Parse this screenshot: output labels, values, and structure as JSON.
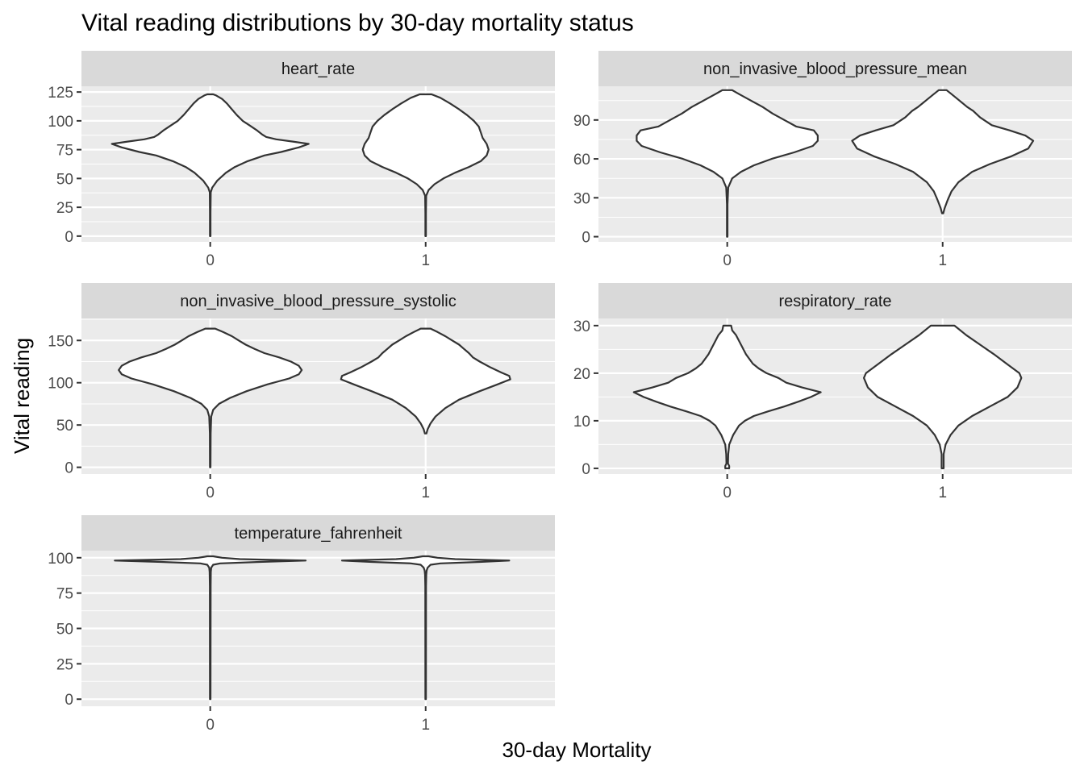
{
  "chart_data": {
    "type": "violin",
    "title": "Vital reading distributions by 30-day mortality status",
    "xlabel": "30-day Mortality",
    "ylabel": "Vital reading",
    "categories": [
      "0",
      "1"
    ],
    "facets": [
      {
        "name": "heart_rate",
        "ylim": [
          -5,
          130
        ],
        "ticks": [
          0,
          25,
          50,
          75,
          100,
          125
        ],
        "tick_labels": [
          "0",
          "25",
          "50",
          "75",
          "100",
          "125"
        ],
        "violins": [
          {
            "category": "0",
            "profile": [
              [
                0,
                0.003
              ],
              [
                20,
                0.003
              ],
              [
                38,
                0.005
              ],
              [
                42,
                0.02
              ],
              [
                48,
                0.07
              ],
              [
                55,
                0.16
              ],
              [
                60,
                0.25
              ],
              [
                65,
                0.38
              ],
              [
                70,
                0.55
              ],
              [
                73,
                0.72
              ],
              [
                77,
                0.9
              ],
              [
                80,
                1.0
              ],
              [
                82,
                0.84
              ],
              [
                84,
                0.67
              ],
              [
                86,
                0.57
              ],
              [
                88,
                0.53
              ],
              [
                92,
                0.47
              ],
              [
                96,
                0.4
              ],
              [
                100,
                0.33
              ],
              [
                105,
                0.27
              ],
              [
                110,
                0.22
              ],
              [
                115,
                0.17
              ],
              [
                119,
                0.12
              ],
              [
                122,
                0.06
              ],
              [
                123,
                0.03
              ]
            ]
          },
          {
            "category": "1",
            "profile": [
              [
                0,
                0.003
              ],
              [
                20,
                0.003
              ],
              [
                35,
                0.005
              ],
              [
                40,
                0.03
              ],
              [
                45,
                0.09
              ],
              [
                50,
                0.18
              ],
              [
                55,
                0.3
              ],
              [
                60,
                0.44
              ],
              [
                65,
                0.56
              ],
              [
                70,
                0.62
              ],
              [
                75,
                0.64
              ],
              [
                80,
                0.62
              ],
              [
                85,
                0.58
              ],
              [
                90,
                0.56
              ],
              [
                95,
                0.54
              ],
              [
                100,
                0.49
              ],
              [
                105,
                0.42
              ],
              [
                110,
                0.34
              ],
              [
                115,
                0.25
              ],
              [
                120,
                0.15
              ],
              [
                123,
                0.06
              ]
            ]
          }
        ]
      },
      {
        "name": "non_invasive_blood_pressure_mean",
        "ylim": [
          -4,
          116
        ],
        "ticks": [
          0,
          30,
          60,
          90
        ],
        "tick_labels": [
          "0",
          "30",
          "60",
          "90"
        ],
        "violins": [
          {
            "category": "0",
            "profile": [
              [
                0,
                0.003
              ],
              [
                25,
                0.003
              ],
              [
                38,
                0.01
              ],
              [
                45,
                0.05
              ],
              [
                50,
                0.14
              ],
              [
                55,
                0.27
              ],
              [
                60,
                0.45
              ],
              [
                65,
                0.68
              ],
              [
                70,
                0.87
              ],
              [
                74,
                0.92
              ],
              [
                78,
                0.92
              ],
              [
                82,
                0.88
              ],
              [
                85,
                0.7
              ],
              [
                90,
                0.58
              ],
              [
                95,
                0.46
              ],
              [
                100,
                0.36
              ],
              [
                105,
                0.24
              ],
              [
                110,
                0.12
              ],
              [
                113,
                0.05
              ]
            ]
          },
          {
            "category": "1",
            "profile": [
              [
                18,
                0.006
              ],
              [
                22,
                0.02
              ],
              [
                28,
                0.05
              ],
              [
                35,
                0.09
              ],
              [
                42,
                0.16
              ],
              [
                50,
                0.3
              ],
              [
                56,
                0.48
              ],
              [
                62,
                0.7
              ],
              [
                68,
                0.87
              ],
              [
                74,
                0.92
              ],
              [
                78,
                0.84
              ],
              [
                82,
                0.68
              ],
              [
                86,
                0.5
              ],
              [
                92,
                0.38
              ],
              [
                97,
                0.31
              ],
              [
                100,
                0.25
              ],
              [
                105,
                0.17
              ],
              [
                110,
                0.09
              ],
              [
                113,
                0.04
              ]
            ]
          }
        ]
      },
      {
        "name": "non_invasive_blood_pressure_systolic",
        "ylim": [
          -8,
          176
        ],
        "ticks": [
          0,
          50,
          100,
          150
        ],
        "tick_labels": [
          "0",
          "50",
          "100",
          "150"
        ],
        "violins": [
          {
            "category": "0",
            "profile": [
              [
                0,
                0.003
              ],
              [
                40,
                0.004
              ],
              [
                60,
                0.01
              ],
              [
                68,
                0.03
              ],
              [
                75,
                0.09
              ],
              [
                82,
                0.2
              ],
              [
                90,
                0.37
              ],
              [
                98,
                0.58
              ],
              [
                105,
                0.8
              ],
              [
                110,
                0.9
              ],
              [
                115,
                0.93
              ],
              [
                120,
                0.9
              ],
              [
                125,
                0.82
              ],
              [
                130,
                0.7
              ],
              [
                135,
                0.55
              ],
              [
                140,
                0.45
              ],
              [
                145,
                0.36
              ],
              [
                150,
                0.29
              ],
              [
                155,
                0.22
              ],
              [
                160,
                0.13
              ],
              [
                164,
                0.05
              ]
            ]
          },
          {
            "category": "1",
            "profile": [
              [
                40,
                0.008
              ],
              [
                45,
                0.02
              ],
              [
                52,
                0.05
              ],
              [
                60,
                0.1
              ],
              [
                70,
                0.2
              ],
              [
                80,
                0.34
              ],
              [
                90,
                0.55
              ],
              [
                98,
                0.73
              ],
              [
                104,
                0.86
              ],
              [
                108,
                0.85
              ],
              [
                112,
                0.77
              ],
              [
                118,
                0.66
              ],
              [
                125,
                0.55
              ],
              [
                130,
                0.48
              ],
              [
                135,
                0.44
              ],
              [
                140,
                0.39
              ],
              [
                145,
                0.34
              ],
              [
                150,
                0.27
              ],
              [
                155,
                0.2
              ],
              [
                160,
                0.12
              ],
              [
                164,
                0.05
              ]
            ]
          }
        ]
      },
      {
        "name": "respiratory_rate",
        "ylim": [
          -1.2,
          31.5
        ],
        "ticks": [
          0,
          10,
          20,
          30
        ],
        "tick_labels": [
          "0",
          "10",
          "20",
          "30"
        ],
        "violins": [
          {
            "category": "0",
            "profile": [
              [
                0,
                0.02
              ],
              [
                0.5,
                0.02
              ],
              [
                1,
                0.008
              ],
              [
                3,
                0.01
              ],
              [
                5,
                0.02
              ],
              [
                7,
                0.06
              ],
              [
                9,
                0.12
              ],
              [
                10,
                0.18
              ],
              [
                11,
                0.27
              ],
              [
                12,
                0.42
              ],
              [
                13,
                0.58
              ],
              [
                14,
                0.72
              ],
              [
                15,
                0.85
              ],
              [
                16,
                0.95
              ],
              [
                17,
                0.76
              ],
              [
                18,
                0.6
              ],
              [
                19,
                0.52
              ],
              [
                20,
                0.4
              ],
              [
                21,
                0.32
              ],
              [
                22,
                0.26
              ],
              [
                24,
                0.19
              ],
              [
                26,
                0.14
              ],
              [
                28,
                0.09
              ],
              [
                29,
                0.05
              ],
              [
                30,
                0.04
              ]
            ]
          },
          {
            "category": "1",
            "profile": [
              [
                0,
                0.01
              ],
              [
                3,
                0.01
              ],
              [
                5,
                0.03
              ],
              [
                7,
                0.08
              ],
              [
                9,
                0.16
              ],
              [
                11,
                0.3
              ],
              [
                13,
                0.48
              ],
              [
                15,
                0.66
              ],
              [
                17,
                0.76
              ],
              [
                19,
                0.8
              ],
              [
                20,
                0.78
              ],
              [
                22,
                0.65
              ],
              [
                24,
                0.52
              ],
              [
                26,
                0.38
              ],
              [
                28,
                0.24
              ],
              [
                30,
                0.12
              ]
            ]
          }
        ]
      },
      {
        "name": "temperature_fahrenheit",
        "ylim": [
          -5,
          105
        ],
        "ticks": [
          0,
          25,
          50,
          75,
          100
        ],
        "tick_labels": [
          "0",
          "25",
          "50",
          "75",
          "100"
        ],
        "violins": [
          {
            "category": "0",
            "profile": [
              [
                0,
                0.003
              ],
              [
                80,
                0.004
              ],
              [
                90,
                0.006
              ],
              [
                93,
                0.01
              ],
              [
                95,
                0.03
              ],
              [
                96,
                0.1
              ],
              [
                97,
                0.5
              ],
              [
                98,
                0.97
              ],
              [
                99,
                0.3
              ],
              [
                100,
                0.12
              ],
              [
                101,
                0.03
              ]
            ]
          },
          {
            "category": "1",
            "profile": [
              [
                0,
                0.003
              ],
              [
                80,
                0.004
              ],
              [
                88,
                0.006
              ],
              [
                91,
                0.01
              ],
              [
                93,
                0.02
              ],
              [
                95,
                0.05
              ],
              [
                96,
                0.15
              ],
              [
                97,
                0.55
              ],
              [
                98,
                0.85
              ],
              [
                99,
                0.3
              ],
              [
                100,
                0.12
              ],
              [
                101,
                0.03
              ]
            ]
          }
        ]
      }
    ],
    "colors": {
      "panel_background": "#ebebeb",
      "strip_background": "#d9d9d9",
      "grid_major": "#ffffff",
      "violin_fill": "#ffffff",
      "violin_outline": "#333333",
      "text": "#000000",
      "tick_text": "#4d4d4d"
    }
  }
}
